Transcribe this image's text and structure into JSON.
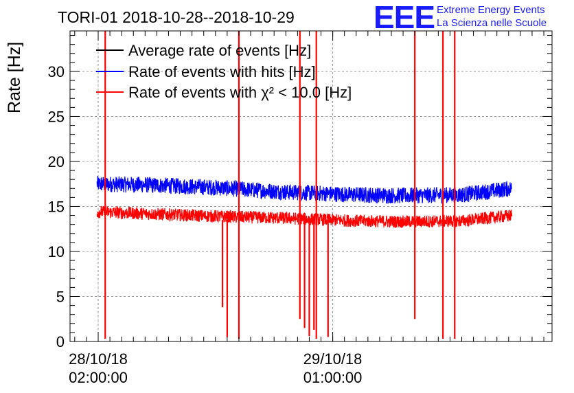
{
  "header": {
    "title": "TORI-01 2018-10-28--2018-10-29"
  },
  "logo": {
    "mark": "EEE",
    "line1": "Extreme Energy Events",
    "line2": "La Scienza nelle Scuole",
    "color": "#1a1aff"
  },
  "chart_data": {
    "type": "line",
    "title": "TORI-01 2018-10-28--2018-10-29",
    "ylabel": "Rate [Hz]",
    "ylim": [
      0,
      34.5
    ],
    "y_ticks": [
      0,
      5,
      10,
      15,
      20,
      25,
      30
    ],
    "xlim_hours": [
      -0.4,
      40.7
    ],
    "x_major_ticks": [
      {
        "hour": 2.0,
        "date": "28/10/18",
        "time": "02:00:00"
      },
      {
        "hour": 22.0,
        "date": "29/10/18",
        "time": "01:00:00"
      }
    ],
    "x_data_range_hours": [
      1.9,
      37.3
    ],
    "grid": true,
    "legend_position": "top-left",
    "legend": [
      {
        "name": "Average rate of events [Hz]",
        "color": "#000000"
      },
      {
        "name": "Rate of events with hits [Hz]",
        "color": "#0000ff"
      },
      {
        "name": "Rate of events with χ² < 10.0 [Hz]",
        "color": "#ff0000"
      }
    ],
    "series": [
      {
        "name": "Rate of events with hits [Hz]",
        "color": "#0000ff",
        "trend": {
          "x": [
            1.9,
            6.0,
            12.0,
            18.0,
            24.0,
            28.0,
            33.0,
            37.3
          ],
          "y": [
            17.5,
            17.4,
            17.1,
            16.6,
            16.3,
            16.2,
            16.3,
            17.0
          ]
        },
        "noise_amplitude": 0.9
      },
      {
        "name": "Rate of events with χ² < 10.0 [Hz]",
        "color": "#ff0000",
        "trend": {
          "x": [
            1.9,
            6.0,
            12.0,
            18.0,
            24.0,
            28.0,
            33.0,
            37.3
          ],
          "y": [
            14.4,
            14.2,
            13.9,
            13.7,
            13.4,
            13.3,
            13.4,
            14.0
          ]
        },
        "noise_amplitude": 0.7
      }
    ],
    "spikes_hours": [
      {
        "x": 2.6,
        "y": 36,
        "low": 0.3
      },
      {
        "x": 12.6,
        "y": 0,
        "low": 3.8
      },
      {
        "x": 13.0,
        "y": 0,
        "low": 0.5
      },
      {
        "x": 14.0,
        "y": 36,
        "low": 0.3
      },
      {
        "x": 19.2,
        "y": 36,
        "low": 2.5
      },
      {
        "x": 19.6,
        "y": 0,
        "low": 1.5
      },
      {
        "x": 20.0,
        "y": 0,
        "low": 0.6
      },
      {
        "x": 20.4,
        "y": 0,
        "low": 1.3
      },
      {
        "x": 20.6,
        "y": 36,
        "low": 0.3
      },
      {
        "x": 21.6,
        "y": 0,
        "low": 0.5
      },
      {
        "x": 29.0,
        "y": 36,
        "low": 2.5
      },
      {
        "x": 31.4,
        "y": 36,
        "low": 0.3
      },
      {
        "x": 32.4,
        "y": 36,
        "low": 0.3
      }
    ]
  }
}
